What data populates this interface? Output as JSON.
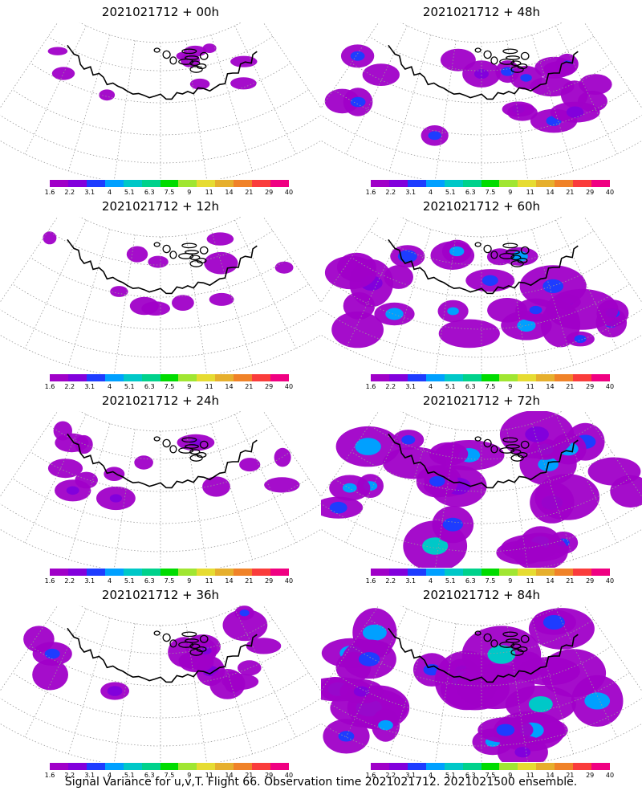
{
  "colorbar": {
    "labels": [
      "1.6",
      "2.2",
      "3.1",
      "4",
      "5.1",
      "6.3",
      "7.5",
      "9",
      "11",
      "14",
      "21",
      "29",
      "40"
    ],
    "colors": [
      "#a000c8",
      "#8200dc",
      "#1e3cff",
      "#00a0ff",
      "#00c8c8",
      "#00d28c",
      "#00dc00",
      "#a0e632",
      "#e6dc32",
      "#e6af2d",
      "#f08228",
      "#fa3c3c",
      "#f00082"
    ]
  },
  "footer": "Signal Variance for u,v,T. Flight 66. Observation time 2021021712. 2021021500 ensemble.",
  "chart_data": [
    {
      "type": "heatmap",
      "title": "2021021712 + 00h",
      "panel": "left-1",
      "coverage": 0.12,
      "extent": 0.45
    },
    {
      "type": "heatmap",
      "title": "2021021712 + 12h",
      "panel": "left-2",
      "coverage": 0.16,
      "extent": 0.55
    },
    {
      "type": "heatmap",
      "title": "2021021712 + 24h",
      "panel": "left-3",
      "coverage": 0.28,
      "extent": 0.6
    },
    {
      "type": "heatmap",
      "title": "2021021712 + 36h",
      "panel": "left-4",
      "coverage": 0.38,
      "extent": 0.65
    },
    {
      "type": "heatmap",
      "title": "2021021712 + 48h",
      "panel": "right-1",
      "coverage": 0.48,
      "extent": 0.75
    },
    {
      "type": "heatmap",
      "title": "2021021712 + 60h",
      "panel": "right-2",
      "coverage": 0.62,
      "extent": 0.85
    },
    {
      "type": "heatmap",
      "title": "2021021712 + 72h",
      "panel": "right-3",
      "coverage": 0.72,
      "extent": 0.9
    },
    {
      "type": "heatmap",
      "title": "2021021712 + 84h",
      "panel": "right-4",
      "coverage": 0.8,
      "extent": 1.0
    }
  ]
}
